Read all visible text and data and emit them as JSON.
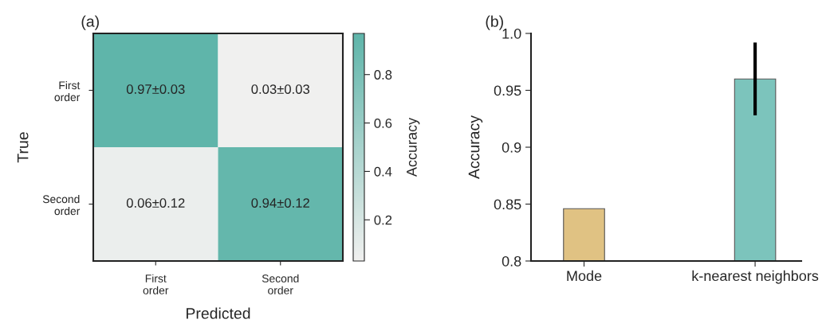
{
  "chart_data": [
    {
      "type": "heatmap",
      "title": "(a)",
      "xlabel": "Predicted",
      "ylabel": "True",
      "clabel": "Accuracy",
      "categories": [
        "First\norder",
        "Second\norder"
      ],
      "y_categories": [
        "First\norder",
        "Second\norder"
      ],
      "cells": [
        [
          0.97,
          0.03
        ],
        [
          0.06,
          0.94
        ]
      ],
      "cell_labels": [
        [
          "0.97±0.03",
          "0.03±0.03"
        ],
        [
          "0.06±0.12",
          "0.94±0.12"
        ]
      ],
      "clim": [
        0.03,
        0.97
      ],
      "cticks": [
        0.2,
        0.4,
        0.6,
        0.8
      ]
    },
    {
      "type": "bar",
      "title": "(b)",
      "ylabel": "Accuracy",
      "categories": [
        "Mode",
        "k-nearest neighbors"
      ],
      "values": [
        0.846,
        0.96
      ],
      "colors": [
        "#e0c283",
        "#7cc4bc"
      ],
      "errors": [
        null,
        0.032
      ],
      "ylim": [
        0.8,
        1.0
      ],
      "yticks": [
        0.8,
        0.85,
        0.9,
        0.95,
        {
          "value": 1.0,
          "label": "1.0"
        }
      ],
      "grid": false,
      "legend": false
    }
  ]
}
